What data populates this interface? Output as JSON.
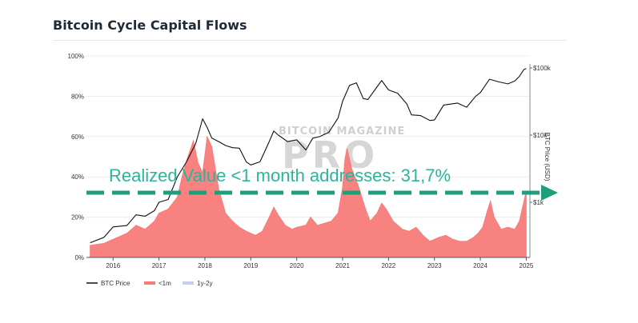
{
  "title": "Bitcoin Cycle Capital Flows",
  "annotation": "Realized Value <1 month addresses: 31,7%",
  "watermark": {
    "line1": "BITCOIN MAGAZINE",
    "line2": "PRO"
  },
  "colors": {
    "btc_line": "#111111",
    "area": "#f47b78",
    "area_fill": "#f77b79",
    "one_to_two": "#c9cdee",
    "annotation": "#2db39c",
    "arrow": "#1f9e7c"
  },
  "chart_data": {
    "type": "area",
    "title": "Bitcoin Cycle Capital Flows",
    "y_left": {
      "ticks": [
        "0%",
        "20%",
        "40%",
        "60%",
        "80%",
        "100%"
      ],
      "range": [
        0,
        100
      ]
    },
    "y_right": {
      "label": "BTC Price (USD)",
      "ticks": [
        "$1k",
        "$10k",
        "$100k"
      ],
      "scale": "log"
    },
    "x_ticks": [
      "2016",
      "2017",
      "2018",
      "2019",
      "2020",
      "2021",
      "2022",
      "2023",
      "2024",
      "2025"
    ],
    "legend": [
      "BTC Price",
      "<1m",
      "1y-2y"
    ],
    "series": [
      {
        "name": "<1m",
        "unit": "%",
        "points": [
          [
            2015.5,
            6
          ],
          [
            2015.8,
            7
          ],
          [
            2016.0,
            9
          ],
          [
            2016.3,
            12
          ],
          [
            2016.5,
            16
          ],
          [
            2016.7,
            14
          ],
          [
            2016.9,
            18
          ],
          [
            2017.0,
            22
          ],
          [
            2017.2,
            24
          ],
          [
            2017.4,
            30
          ],
          [
            2017.5,
            40
          ],
          [
            2017.6,
            48
          ],
          [
            2017.75,
            58
          ],
          [
            2017.85,
            47
          ],
          [
            2017.95,
            42
          ],
          [
            2018.05,
            60
          ],
          [
            2018.15,
            55
          ],
          [
            2018.3,
            34
          ],
          [
            2018.45,
            22
          ],
          [
            2018.6,
            18
          ],
          [
            2018.75,
            15
          ],
          [
            2018.9,
            13
          ],
          [
            2019.0,
            12
          ],
          [
            2019.1,
            11
          ],
          [
            2019.25,
            13
          ],
          [
            2019.4,
            20
          ],
          [
            2019.5,
            25
          ],
          [
            2019.6,
            21
          ],
          [
            2019.75,
            16
          ],
          [
            2019.9,
            14
          ],
          [
            2020.0,
            15
          ],
          [
            2020.2,
            16
          ],
          [
            2020.3,
            20
          ],
          [
            2020.45,
            16
          ],
          [
            2020.6,
            17
          ],
          [
            2020.75,
            18
          ],
          [
            2020.9,
            22
          ],
          [
            2021.0,
            35
          ],
          [
            2021.05,
            49
          ],
          [
            2021.1,
            54
          ],
          [
            2021.2,
            44
          ],
          [
            2021.35,
            35
          ],
          [
            2021.5,
            24
          ],
          [
            2021.6,
            18
          ],
          [
            2021.75,
            22
          ],
          [
            2021.85,
            27
          ],
          [
            2021.95,
            24
          ],
          [
            2022.1,
            18
          ],
          [
            2022.3,
            14
          ],
          [
            2022.45,
            13
          ],
          [
            2022.6,
            15
          ],
          [
            2022.75,
            11
          ],
          [
            2022.9,
            8
          ],
          [
            2023.0,
            9
          ],
          [
            2023.1,
            10
          ],
          [
            2023.25,
            11
          ],
          [
            2023.4,
            9
          ],
          [
            2023.55,
            8
          ],
          [
            2023.7,
            8
          ],
          [
            2023.85,
            10
          ],
          [
            2023.95,
            12
          ],
          [
            2024.05,
            15
          ],
          [
            2024.15,
            23
          ],
          [
            2024.22,
            28
          ],
          [
            2024.3,
            20
          ],
          [
            2024.45,
            14
          ],
          [
            2024.6,
            15
          ],
          [
            2024.75,
            14
          ],
          [
            2024.85,
            18
          ],
          [
            2024.93,
            26
          ],
          [
            2025.0,
            33
          ]
        ]
      },
      {
        "name": "BTC Price",
        "unit": "USD",
        "points": [
          [
            2015.5,
            250
          ],
          [
            2015.8,
            300
          ],
          [
            2016.0,
            430
          ],
          [
            2016.3,
            450
          ],
          [
            2016.5,
            650
          ],
          [
            2016.7,
            620
          ],
          [
            2016.9,
            750
          ],
          [
            2017.0,
            1000
          ],
          [
            2017.2,
            1100
          ],
          [
            2017.4,
            2400
          ],
          [
            2017.6,
            4000
          ],
          [
            2017.8,
            7500
          ],
          [
            2017.95,
            17500
          ],
          [
            2018.05,
            13000
          ],
          [
            2018.15,
            9000
          ],
          [
            2018.3,
            8000
          ],
          [
            2018.45,
            7000
          ],
          [
            2018.6,
            6500
          ],
          [
            2018.75,
            6400
          ],
          [
            2018.9,
            4000
          ],
          [
            2019.0,
            3600
          ],
          [
            2019.2,
            4000
          ],
          [
            2019.4,
            8000
          ],
          [
            2019.5,
            11500
          ],
          [
            2019.6,
            10000
          ],
          [
            2019.8,
            8000
          ],
          [
            2020.0,
            8500
          ],
          [
            2020.2,
            6000
          ],
          [
            2020.35,
            9000
          ],
          [
            2020.5,
            9500
          ],
          [
            2020.7,
            11000
          ],
          [
            2020.9,
            18000
          ],
          [
            2021.0,
            32000
          ],
          [
            2021.15,
            55000
          ],
          [
            2021.3,
            60000
          ],
          [
            2021.45,
            35000
          ],
          [
            2021.55,
            34000
          ],
          [
            2021.7,
            47000
          ],
          [
            2021.85,
            65000
          ],
          [
            2022.0,
            47000
          ],
          [
            2022.2,
            42000
          ],
          [
            2022.4,
            29000
          ],
          [
            2022.5,
            20000
          ],
          [
            2022.7,
            19500
          ],
          [
            2022.9,
            16500
          ],
          [
            2023.0,
            16800
          ],
          [
            2023.2,
            28000
          ],
          [
            2023.5,
            30000
          ],
          [
            2023.7,
            26000
          ],
          [
            2023.9,
            38000
          ],
          [
            2024.0,
            43000
          ],
          [
            2024.2,
            68000
          ],
          [
            2024.4,
            62000
          ],
          [
            2024.6,
            58000
          ],
          [
            2024.75,
            64000
          ],
          [
            2024.85,
            75000
          ],
          [
            2024.95,
            95000
          ],
          [
            2025.0,
            98000
          ]
        ]
      },
      {
        "name": "1y-2y",
        "unit": "%",
        "points": []
      }
    ]
  }
}
